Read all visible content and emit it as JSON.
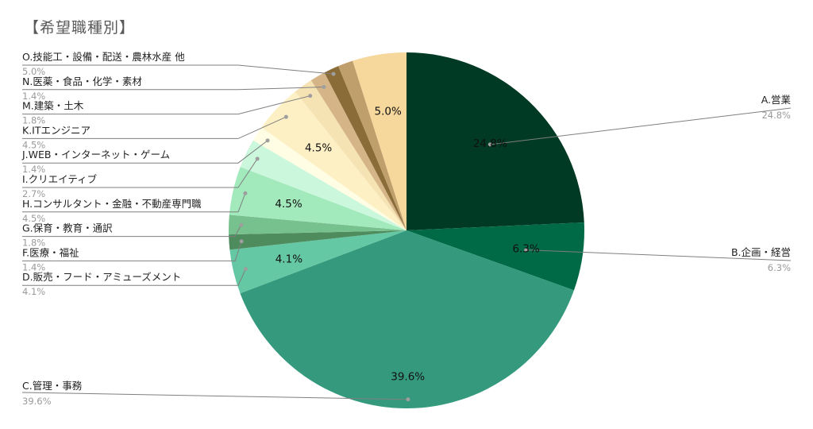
{
  "chart_data": {
    "type": "pie",
    "title": "【希望職種別】",
    "start": "top",
    "direction": "clockwise",
    "slices": [
      {
        "label": "A.営業",
        "value": 24.8,
        "pct": "24.8%",
        "color": "#003a24"
      },
      {
        "label": "B.企画・経営",
        "value": 6.3,
        "pct": "6.3%",
        "color": "#006a46"
      },
      {
        "label": "C.管理・事務",
        "value": 39.6,
        "pct": "39.6%",
        "color": "#359a7d"
      },
      {
        "label": "D.販売・フード・アミューズメント",
        "value": 4.1,
        "pct": "4.1%",
        "color": "#64c8a4"
      },
      {
        "label": "F.医療・福祉",
        "value": 1.4,
        "pct": "1.4%",
        "color": "#4e8c5e"
      },
      {
        "label": "G.保育・教育・通訳",
        "value": 1.8,
        "pct": "1.8%",
        "color": "#76c18e"
      },
      {
        "label": "H.コンサルタント・金融・不動産専門職",
        "value": 4.5,
        "pct": "4.5%",
        "color": "#a2e9bc"
      },
      {
        "label": "I.クリエイティブ",
        "value": 2.7,
        "pct": "2.7%",
        "color": "#cbf7dc"
      },
      {
        "label": "J.WEB・インターネット・ゲーム",
        "value": 1.4,
        "pct": "1.4%",
        "color": "#fffde3"
      },
      {
        "label": "K.ITエンジニア",
        "value": 4.5,
        "pct": "4.5%",
        "color": "#fdf0c5"
      },
      {
        "label": "M.建築・土木",
        "value": 1.8,
        "pct": "1.8%",
        "color": "#f6e3b4"
      },
      {
        "label": "N.医薬・食品・化学・素材",
        "value": 1.4,
        "pct": "1.4%",
        "color": "#d5b588"
      },
      {
        "label": "O.技能工・設備・配送・農林水産 他",
        "value": 5.0,
        "pct": "5.0%",
        "color": "#8a6c39"
      }
    ],
    "extra_slices": [
      {
        "value": 1.4,
        "color": "#bfa06c"
      },
      {
        "value": 5.0,
        "color": "#f6d79c"
      }
    ],
    "inner_labels": [
      "24.8%",
      "6.3%",
      "39.6%",
      "4.1%",
      "4.5%",
      "4.5%",
      "5.0%"
    ]
  }
}
